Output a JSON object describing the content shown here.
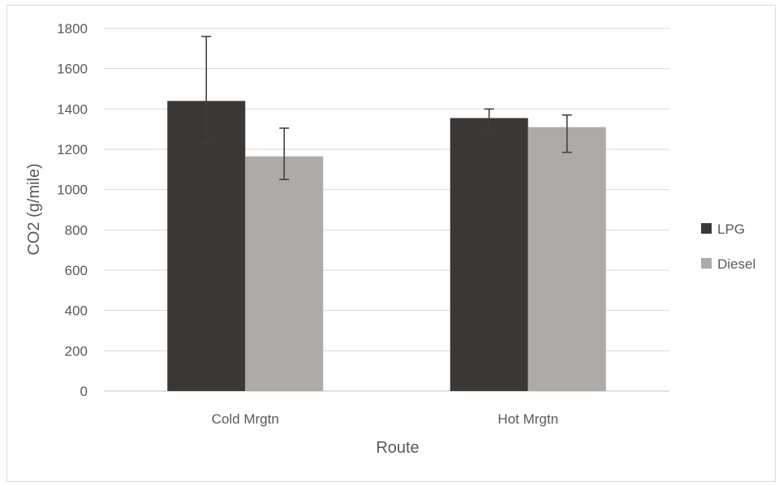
{
  "chart_data": {
    "type": "bar",
    "categories": [
      "Cold Mrgtn",
      "Hot Mrgtn"
    ],
    "series": [
      {
        "name": "LPG",
        "values": [
          1440,
          1355
        ],
        "error_low": [
          1230,
          1305
        ],
        "error_high": [
          1760,
          1400
        ]
      },
      {
        "name": "Diesel",
        "values": [
          1165,
          1310
        ],
        "error_low": [
          1050,
          1185
        ],
        "error_high": [
          1305,
          1370
        ]
      }
    ],
    "title": "",
    "xlabel": "Route",
    "ylabel": "CO2 (g/mile)",
    "ylim": [
      0,
      1800
    ],
    "yticks": [
      "0",
      "200",
      "400",
      "600",
      "800",
      "1000",
      "1200",
      "1400",
      "1600",
      "1800"
    ],
    "grid": true,
    "legend_position": "right",
    "colors": {
      "LPG": "#3b3836",
      "Diesel": "#aeaaa8"
    }
  }
}
